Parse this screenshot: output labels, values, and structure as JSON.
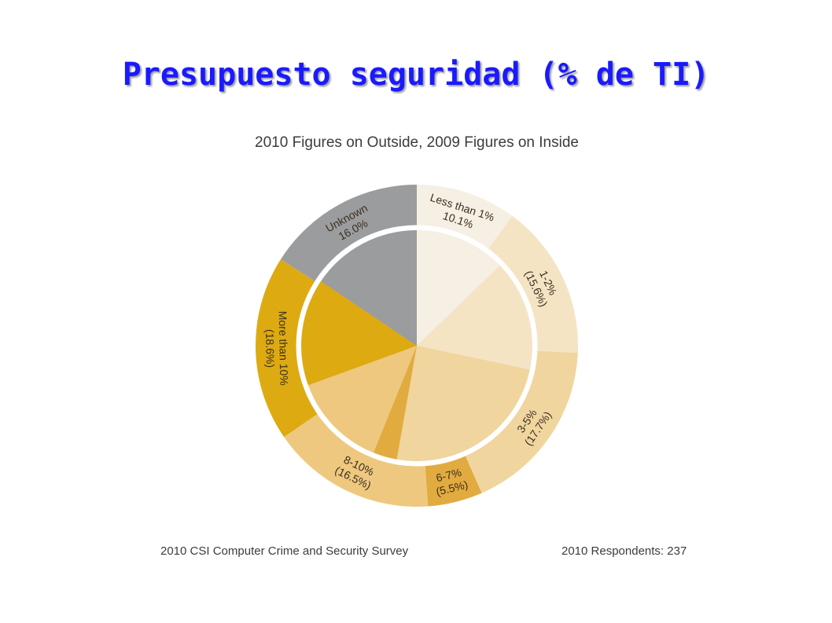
{
  "slide": {
    "title": "Presupuesto seguridad (% de TI)"
  },
  "chart_data": {
    "type": "pie",
    "subtitle": "2010 Figures on Outside, 2009 Figures on Inside",
    "categories": [
      "Less than 1%",
      "1-2%",
      "3-5%",
      "6-7%",
      "8-10%",
      "More than 10%",
      "Unknown"
    ],
    "series": [
      {
        "name": "2010",
        "ring": "outer",
        "values": [
          10.1,
          15.6,
          17.7,
          5.5,
          16.5,
          18.6,
          16.0
        ],
        "labels": [
          "10.1%",
          "(15.6%)",
          "(17.7%)",
          "(5.5%)",
          "(16.5%)",
          "(18.6%)",
          "16.0%"
        ]
      },
      {
        "ring": "inner",
        "values": [
          11.5,
          14.0,
          22.0,
          3.0,
          12.0,
          13.5,
          14.0
        ]
      }
    ],
    "colors": [
      "#f6efe3",
      "#f5e4c4",
      "#f0d59e",
      "#e2ab3f",
      "#eec87e",
      "#ddaa12",
      "#9b9c9e"
    ],
    "footer_left": "2010 CSI Computer Crime and Security Survey",
    "footer_right": "2010 Respondents: 237"
  }
}
